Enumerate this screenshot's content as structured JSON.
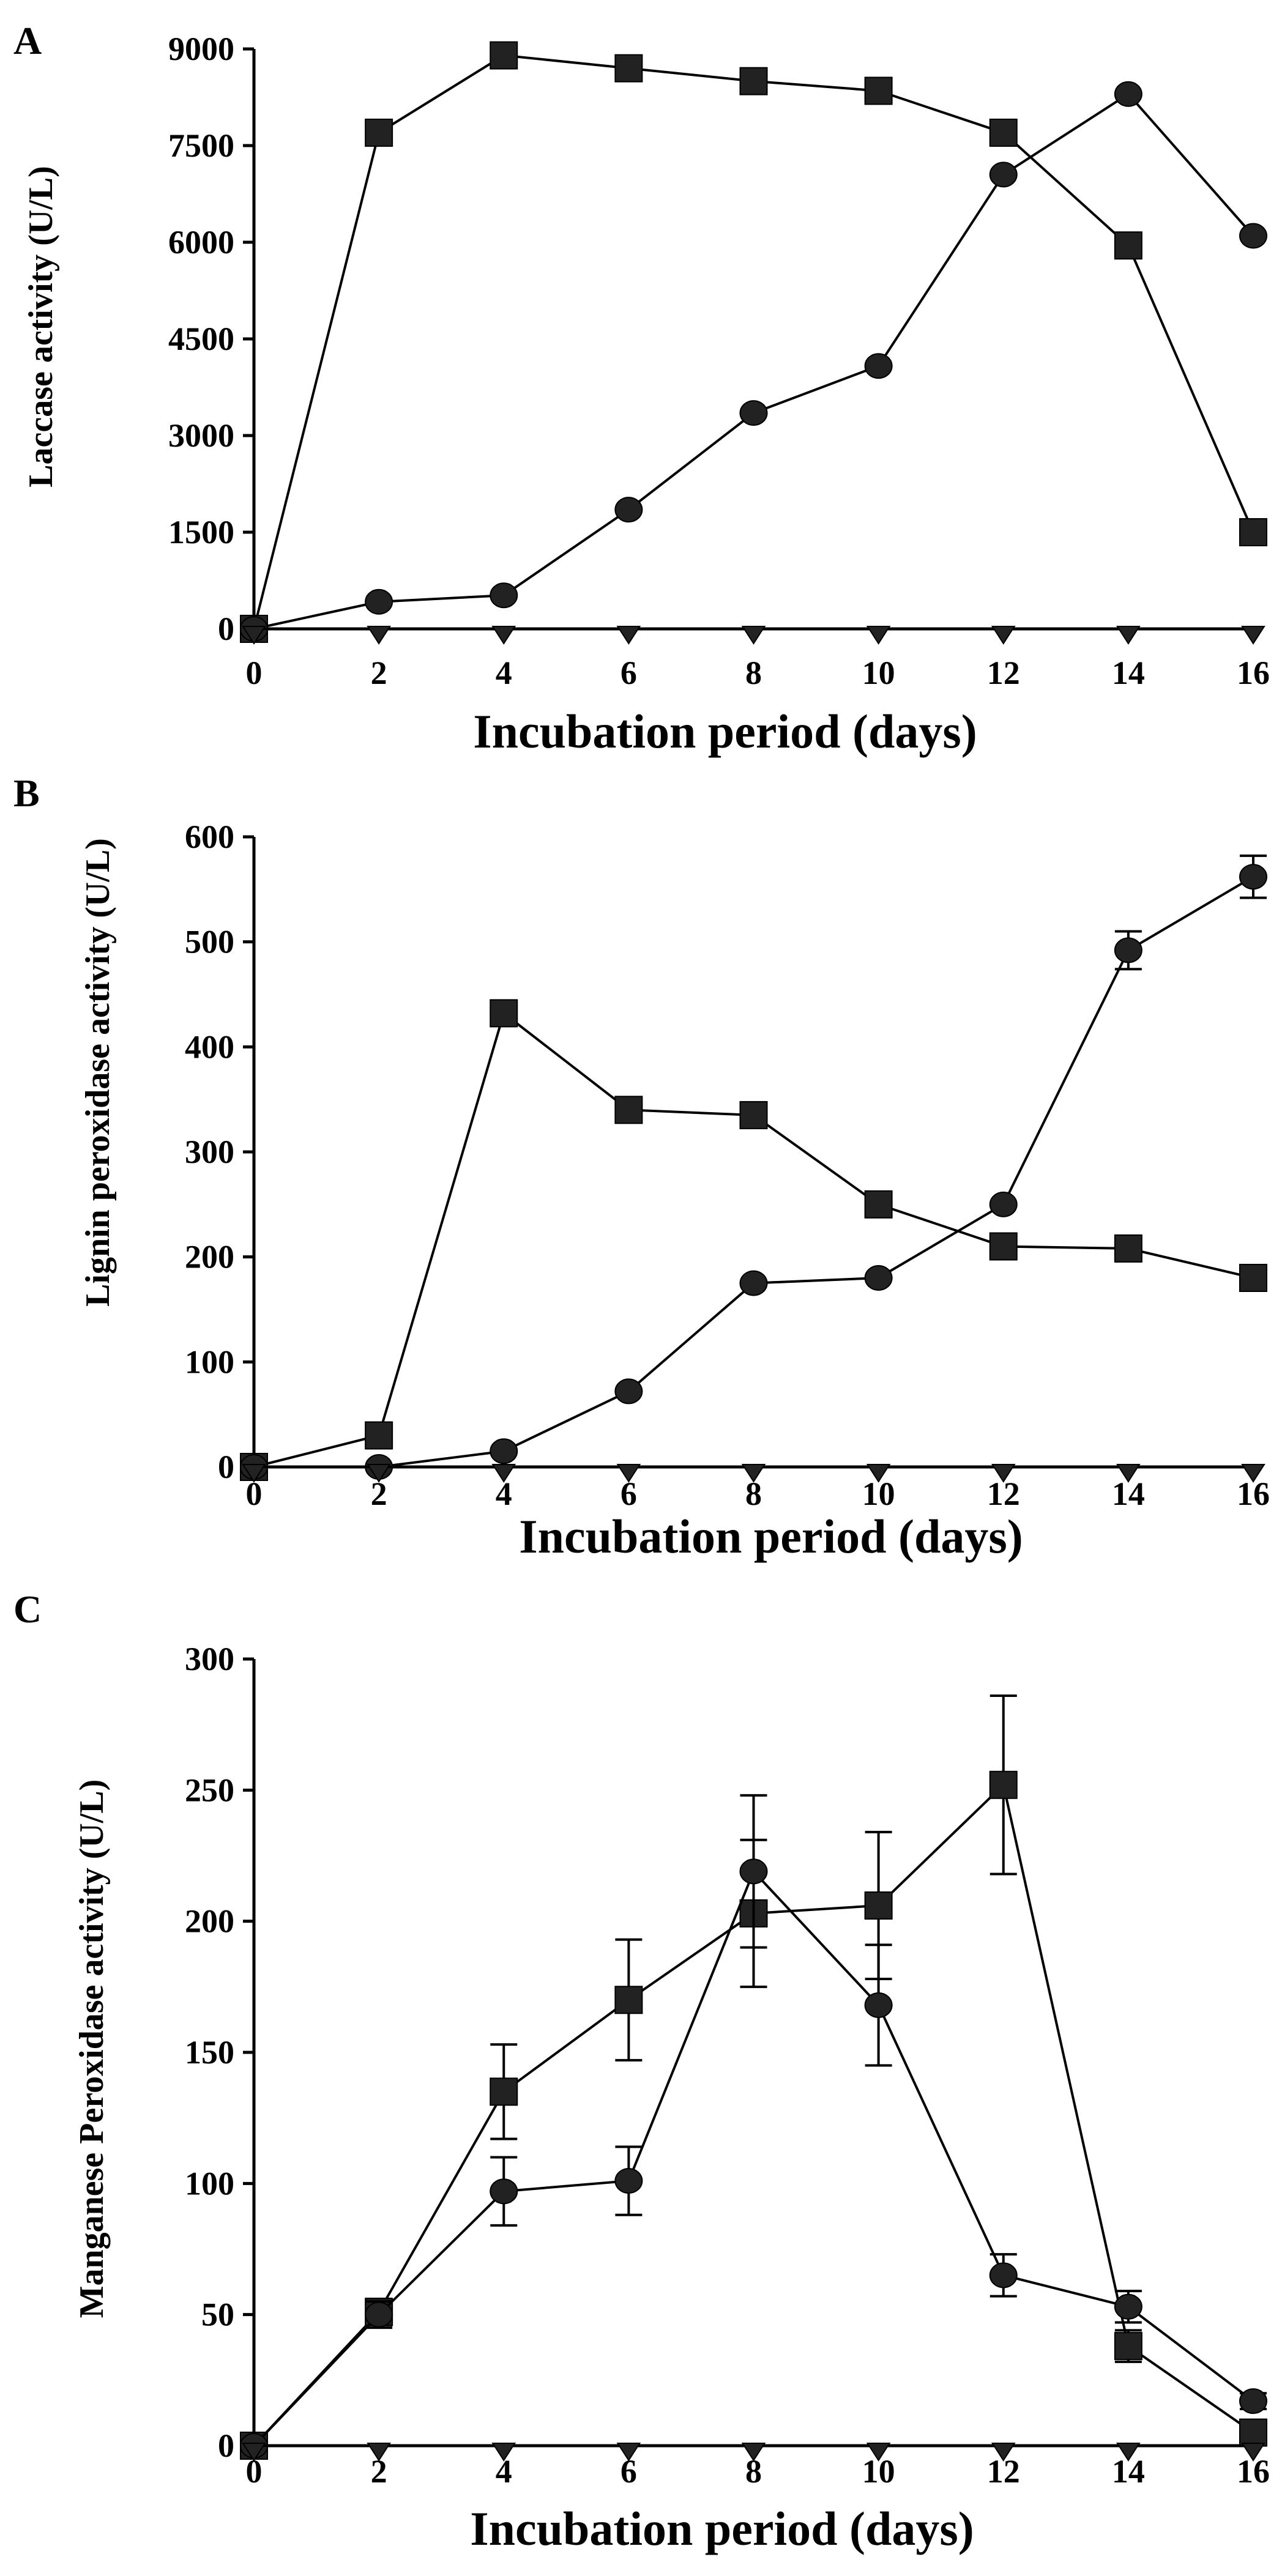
{
  "chart_data": [
    {
      "type": "line",
      "panel_label": "A",
      "xlabel": "Incubation period (days)",
      "ylabel": "Laccase activity (U/L)",
      "xlim": [
        0,
        16
      ],
      "ylim": [
        0,
        9000
      ],
      "xticks": [
        0,
        2,
        4,
        6,
        8,
        10,
        12,
        14,
        16
      ],
      "yticks": [
        0,
        1500,
        3000,
        4500,
        6000,
        7500,
        9000
      ],
      "x": [
        0,
        2,
        4,
        6,
        8,
        10,
        12,
        14,
        16
      ],
      "series": [
        {
          "name": "square",
          "marker": "square",
          "values": [
            0,
            7700,
            8900,
            8700,
            8500,
            8350,
            7700,
            5950,
            1500
          ]
        },
        {
          "name": "circle",
          "marker": "circle",
          "values": [
            0,
            420,
            520,
            1850,
            3350,
            4080,
            7050,
            8300,
            6100
          ]
        },
        {
          "name": "triangle",
          "marker": "triangle-down",
          "values": [
            0,
            0,
            0,
            0,
            0,
            0,
            0,
            0,
            0
          ]
        }
      ]
    },
    {
      "type": "line",
      "panel_label": "B",
      "xlabel": "Incubation period (days)",
      "ylabel": "Lignin peroxidase activity (U/L)",
      "xlim": [
        0,
        16
      ],
      "ylim": [
        0,
        600
      ],
      "xticks": [
        0,
        2,
        4,
        6,
        8,
        10,
        12,
        14,
        16
      ],
      "yticks": [
        0,
        100,
        200,
        300,
        400,
        500,
        600
      ],
      "x": [
        0,
        2,
        4,
        6,
        8,
        10,
        12,
        14,
        16
      ],
      "series": [
        {
          "name": "square",
          "marker": "square",
          "values": [
            0,
            30,
            432,
            340,
            335,
            250,
            210,
            208,
            180
          ],
          "errors": [
            0,
            0,
            0,
            0,
            12,
            0,
            0,
            0,
            0
          ]
        },
        {
          "name": "circle",
          "marker": "circle",
          "values": [
            0,
            0,
            15,
            72,
            175,
            180,
            250,
            492,
            562
          ],
          "errors": [
            0,
            0,
            0,
            0,
            0,
            0,
            0,
            18,
            20
          ]
        },
        {
          "name": "triangle",
          "marker": "triangle-down",
          "values": [
            0,
            0,
            0,
            0,
            0,
            0,
            0,
            0,
            0
          ]
        }
      ]
    },
    {
      "type": "line",
      "panel_label": "C",
      "xlabel": "Incubation period (days)",
      "ylabel": "Manganese Peroxidase activity (U/L)",
      "xlim": [
        0,
        16
      ],
      "ylim": [
        0,
        300
      ],
      "xticks": [
        0,
        2,
        4,
        6,
        8,
        10,
        12,
        14,
        16
      ],
      "yticks": [
        0,
        50,
        100,
        150,
        200,
        250,
        300
      ],
      "x": [
        0,
        2,
        4,
        6,
        8,
        10,
        12,
        14,
        16
      ],
      "series": [
        {
          "name": "square",
          "marker": "square",
          "values": [
            0,
            51,
            135,
            170,
            203,
            206,
            252,
            38,
            5
          ],
          "errors": [
            0,
            5,
            18,
            23,
            28,
            28,
            34,
            6,
            4
          ]
        },
        {
          "name": "circle",
          "marker": "circle",
          "values": [
            0,
            50,
            97,
            101,
            219,
            168,
            65,
            53,
            17
          ],
          "errors": [
            0,
            5,
            13,
            13,
            29,
            23,
            8,
            6,
            3
          ]
        },
        {
          "name": "triangle",
          "marker": "triangle-down",
          "values": [
            0,
            0,
            0,
            0,
            0,
            0,
            0,
            0,
            0
          ]
        }
      ]
    }
  ]
}
